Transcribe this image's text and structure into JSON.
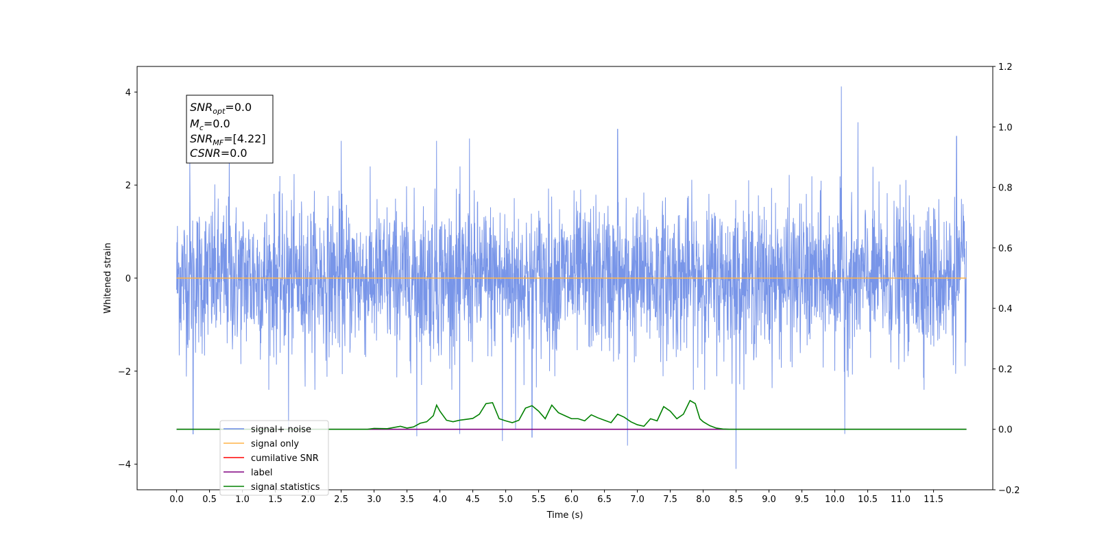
{
  "chart_data": {
    "type": "line",
    "xlabel": "Time (s)",
    "ylabel": "Whitened strain",
    "xlim": [
      -0.6,
      12.4
    ],
    "ylim": [
      -4.55,
      4.55
    ],
    "y2lim": [
      -0.2,
      1.2
    ],
    "x_ticks": [
      0.0,
      0.5,
      1.0,
      1.5,
      2.0,
      2.5,
      3.0,
      3.5,
      4.0,
      4.5,
      5.0,
      5.5,
      6.0,
      6.5,
      7.0,
      7.5,
      8.0,
      8.5,
      9.0,
      9.5,
      10.0,
      10.5,
      11.0,
      11.5
    ],
    "x_tick_labels": [
      "0.0",
      "0.5",
      "1.0",
      "1.5",
      "2.0",
      "2.5",
      "3.0",
      "3.5",
      "4.0",
      "4.5",
      "5.0",
      "5.5",
      "6.0",
      "6.5",
      "7.0",
      "7.5",
      "8.0",
      "8.5",
      "9.0",
      "9.5",
      "10.0",
      "10.5",
      "11.0",
      "11.5"
    ],
    "y_ticks": [
      -4,
      -2,
      0,
      2,
      4
    ],
    "y_tick_labels": [
      "−4",
      "−2",
      "0",
      "2",
      "4"
    ],
    "y2_ticks": [
      -0.2,
      0.0,
      0.2,
      0.4,
      0.6,
      0.8,
      1.0,
      1.2
    ],
    "y2_tick_labels": [
      "−0.2",
      "0.0",
      "0.2",
      "0.4",
      "0.6",
      "0.8",
      "1.0",
      "1.2"
    ],
    "grid": false,
    "legend_position": "lower-left",
    "series": [
      {
        "name": "signal+ noise",
        "axis": "left",
        "color": "#6d8ce6",
        "kind": "noise",
        "x_range": [
          0.0,
          12.0
        ],
        "typical_amplitude": 1.3,
        "peaks": [
          [
            0.2,
            2.6
          ],
          [
            0.25,
            -3.35
          ],
          [
            0.8,
            2.8
          ],
          [
            1.7,
            -3.2
          ],
          [
            2.5,
            2.95
          ],
          [
            3.65,
            -3.4
          ],
          [
            3.95,
            2.95
          ],
          [
            4.3,
            -3.35
          ],
          [
            4.45,
            3.0
          ],
          [
            4.95,
            -3.5
          ],
          [
            5.15,
            -3.25
          ],
          [
            5.4,
            -3.42
          ],
          [
            6.7,
            3.2
          ],
          [
            6.85,
            -3.6
          ],
          [
            8.5,
            -4.1
          ],
          [
            10.1,
            4.12
          ],
          [
            10.15,
            -3.35
          ],
          [
            10.35,
            3.35
          ],
          [
            11.85,
            3.05
          ]
        ]
      },
      {
        "name": "signal only",
        "axis": "left",
        "color": "#ffb347",
        "x": [
          0.0,
          12.0
        ],
        "y": [
          0.0,
          0.0
        ]
      },
      {
        "name": "cumilative SNR",
        "axis": "right",
        "color": "#ff0000",
        "x": [],
        "y": []
      },
      {
        "name": "label",
        "axis": "right",
        "color": "#800080",
        "x": [
          0.0,
          3.0,
          3.05,
          8.2,
          8.25,
          12.0
        ],
        "y": [
          0.0,
          0.0,
          0.0,
          0.0,
          0.0,
          0.0
        ]
      },
      {
        "name": "signal statistics",
        "axis": "right",
        "color": "#008000",
        "x": [
          0.0,
          2.9,
          3.0,
          3.2,
          3.4,
          3.5,
          3.6,
          3.7,
          3.8,
          3.9,
          3.95,
          4.0,
          4.1,
          4.2,
          4.3,
          4.4,
          4.5,
          4.6,
          4.7,
          4.8,
          4.9,
          5.0,
          5.1,
          5.2,
          5.3,
          5.4,
          5.5,
          5.6,
          5.7,
          5.8,
          5.9,
          6.0,
          6.1,
          6.2,
          6.3,
          6.4,
          6.5,
          6.6,
          6.7,
          6.8,
          6.9,
          7.0,
          7.1,
          7.2,
          7.3,
          7.4,
          7.5,
          7.6,
          7.7,
          7.8,
          7.88,
          7.95,
          8.0,
          8.1,
          8.2,
          8.3,
          8.4,
          12.0
        ],
        "y": [
          0.0,
          0.0,
          0.003,
          0.002,
          0.01,
          0.004,
          0.008,
          0.02,
          0.025,
          0.045,
          0.08,
          0.06,
          0.03,
          0.025,
          0.03,
          0.033,
          0.036,
          0.05,
          0.085,
          0.088,
          0.035,
          0.028,
          0.022,
          0.03,
          0.07,
          0.078,
          0.06,
          0.035,
          0.08,
          0.055,
          0.045,
          0.035,
          0.035,
          0.028,
          0.048,
          0.038,
          0.03,
          0.022,
          0.05,
          0.04,
          0.025,
          0.015,
          0.01,
          0.035,
          0.028,
          0.075,
          0.06,
          0.035,
          0.05,
          0.095,
          0.085,
          0.035,
          0.025,
          0.012,
          0.004,
          0.001,
          0.0,
          0.0
        ]
      }
    ],
    "legend_entries": [
      {
        "name": "signal+ noise",
        "color": "#6d8ce6"
      },
      {
        "name": "signal only",
        "color": "#ffb347"
      },
      {
        "name": "cumilative SNR",
        "color": "#ff0000"
      },
      {
        "name": "label",
        "color": "#800080"
      },
      {
        "name": "signal statistics",
        "color": "#008000"
      }
    ],
    "annotation": {
      "snr_opt": {
        "base": "SNR",
        "sub": "opt",
        "value": "=0.0"
      },
      "mc": {
        "base": "M",
        "sub": "c",
        "value": "=0.0"
      },
      "snr_mf": {
        "base": "SNR",
        "sub": "MF",
        "value": "=[4.22]"
      },
      "csnr": {
        "base": "CSNR",
        "sub": "",
        "value": "=0.0"
      }
    }
  }
}
